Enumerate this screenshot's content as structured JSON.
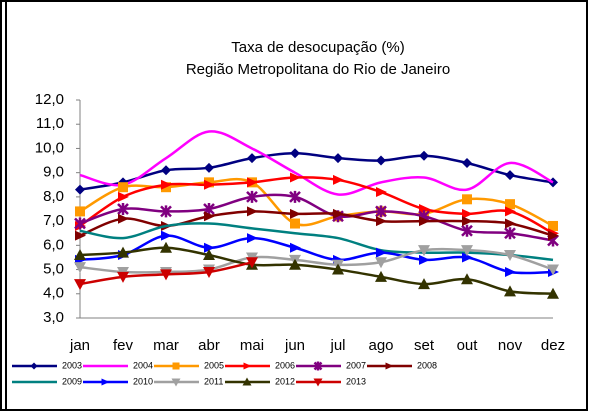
{
  "chart_data": {
    "type": "line",
    "title": "Taxa de desocupação (%)",
    "subtitle": "Região Metropolitana do Rio de Janeiro",
    "categories": [
      "jan",
      "fev",
      "mar",
      "abr",
      "mai",
      "jun",
      "jul",
      "ago",
      "set",
      "out",
      "nov",
      "dez"
    ],
    "ylim": [
      3,
      12
    ],
    "yticks": [
      {
        "value": 3,
        "label": "3,0"
      },
      {
        "value": 4,
        "label": "4,0"
      },
      {
        "value": 5,
        "label": "5,0"
      },
      {
        "value": 6,
        "label": "6,0"
      },
      {
        "value": 7,
        "label": "7,0"
      },
      {
        "value": 8,
        "label": "8,0"
      },
      {
        "value": 9,
        "label": "9,0"
      },
      {
        "value": 10,
        "label": "10,0"
      },
      {
        "value": 11,
        "label": "11,0"
      },
      {
        "value": 12,
        "label": "12,0"
      }
    ],
    "smooth": true,
    "series": [
      {
        "name": "2003",
        "color": "#000080",
        "marker": "diamond",
        "values": [
          8.3,
          8.6,
          9.1,
          9.2,
          9.6,
          9.8,
          9.6,
          9.5,
          9.7,
          9.4,
          8.9,
          8.6
        ]
      },
      {
        "name": "2004",
        "color": "#ff00ff",
        "marker": "none",
        "values": [
          8.9,
          8.5,
          9.6,
          10.7,
          10.0,
          9.0,
          8.1,
          8.6,
          8.8,
          8.3,
          9.4,
          8.6
        ]
      },
      {
        "name": "2005",
        "color": "#ff9900",
        "marker": "square",
        "values": [
          7.4,
          8.4,
          8.4,
          8.6,
          8.6,
          6.9,
          7.2,
          7.4,
          7.3,
          7.9,
          7.7,
          6.8
        ]
      },
      {
        "name": "2006",
        "color": "#ff0000",
        "marker": "arrow",
        "values": [
          6.8,
          8.0,
          8.5,
          8.5,
          8.6,
          8.8,
          8.7,
          8.2,
          7.5,
          7.3,
          7.4,
          6.5
        ]
      },
      {
        "name": "2007",
        "color": "#800080",
        "marker": "star",
        "values": [
          6.9,
          7.5,
          7.4,
          7.5,
          8.0,
          8.0,
          7.2,
          7.4,
          7.2,
          6.6,
          6.5,
          6.2
        ]
      },
      {
        "name": "2008",
        "color": "#800000",
        "marker": "arrow",
        "values": [
          6.4,
          7.1,
          6.8,
          7.2,
          7.4,
          7.3,
          7.3,
          7.0,
          7.0,
          7.0,
          6.9,
          6.4
        ]
      },
      {
        "name": "2009",
        "color": "#008080",
        "marker": "none",
        "values": [
          6.6,
          6.3,
          6.8,
          6.9,
          6.7,
          6.5,
          6.3,
          5.8,
          5.7,
          5.7,
          5.6,
          5.4
        ]
      },
      {
        "name": "2010",
        "color": "#0000ff",
        "marker": "arrow",
        "values": [
          5.4,
          5.6,
          6.4,
          5.9,
          6.3,
          5.9,
          5.4,
          5.7,
          5.4,
          5.5,
          4.9,
          4.9
        ]
      },
      {
        "name": "2011",
        "color": "#a0a0a0",
        "marker": "triangle-down",
        "values": [
          5.1,
          4.9,
          4.9,
          5.0,
          5.5,
          5.4,
          5.2,
          5.3,
          5.8,
          5.8,
          5.6,
          5.0
        ]
      },
      {
        "name": "2012",
        "color": "#333300",
        "marker": "triangle-up",
        "values": [
          5.6,
          5.7,
          5.9,
          5.6,
          5.2,
          5.2,
          5.0,
          4.7,
          4.4,
          4.6,
          4.1,
          4.0
        ]
      },
      {
        "name": "2013",
        "color": "#cc0000",
        "marker": "triangle-down",
        "values": [
          4.4,
          4.7,
          4.8,
          4.9,
          5.3,
          null,
          null,
          null,
          null,
          null,
          null,
          null
        ]
      }
    ]
  }
}
